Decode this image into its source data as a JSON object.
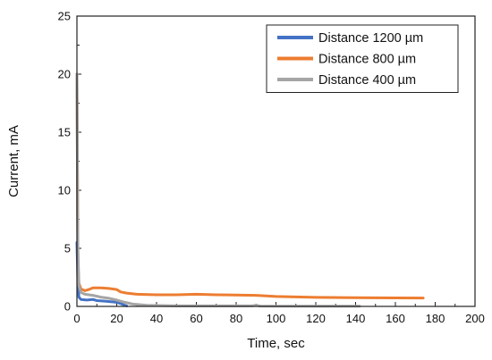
{
  "chart_data": {
    "type": "line",
    "xlabel": "Time, sec",
    "ylabel": "Current, mA",
    "xlim": [
      0,
      200
    ],
    "ylim": [
      0,
      25
    ],
    "xticks": [
      "0",
      "20",
      "40",
      "60",
      "80",
      "100",
      "120",
      "140",
      "160",
      "180",
      "200"
    ],
    "yticks": [
      "0",
      "5",
      "10",
      "15",
      "20",
      "25"
    ],
    "grid": false,
    "legend_position": "top-right",
    "series": [
      {
        "name": "Distance 1200 µm",
        "color": "#4472c4",
        "points": [
          [
            0,
            5.5
          ],
          [
            0.5,
            2.0
          ],
          [
            1,
            0.8
          ],
          [
            2,
            0.6
          ],
          [
            5,
            0.55
          ],
          [
            8,
            0.6
          ],
          [
            10,
            0.5
          ],
          [
            14,
            0.45
          ],
          [
            17,
            0.4
          ],
          [
            20,
            0.35
          ],
          [
            22,
            0.25
          ],
          [
            24,
            0.1
          ],
          [
            25,
            0.05
          ]
        ]
      },
      {
        "name": "Distance 800 µm",
        "color": "#ed7d31",
        "points": [
          [
            0,
            20.0
          ],
          [
            0.5,
            4.0
          ],
          [
            1,
            2.0
          ],
          [
            2,
            1.5
          ],
          [
            4,
            1.35
          ],
          [
            6,
            1.45
          ],
          [
            8,
            1.6
          ],
          [
            12,
            1.6
          ],
          [
            16,
            1.55
          ],
          [
            20,
            1.45
          ],
          [
            22,
            1.25
          ],
          [
            25,
            1.15
          ],
          [
            30,
            1.05
          ],
          [
            40,
            1.0
          ],
          [
            50,
            1.0
          ],
          [
            60,
            1.05
          ],
          [
            70,
            1.0
          ],
          [
            90,
            0.95
          ],
          [
            100,
            0.85
          ],
          [
            120,
            0.78
          ],
          [
            140,
            0.75
          ],
          [
            160,
            0.73
          ],
          [
            174,
            0.72
          ]
        ]
      },
      {
        "name": "Distance 400 µm",
        "color": "#a5a5a5",
        "points": [
          [
            0,
            20.0
          ],
          [
            0.5,
            5.0
          ],
          [
            1,
            1.8
          ],
          [
            2,
            1.2
          ],
          [
            4,
            1.05
          ],
          [
            8,
            0.95
          ],
          [
            12,
            0.8
          ],
          [
            16,
            0.7
          ],
          [
            20,
            0.55
          ],
          [
            24,
            0.35
          ],
          [
            28,
            0.2
          ],
          [
            35,
            0.1
          ],
          [
            50,
            0.05
          ],
          [
            88,
            0.05
          ],
          [
            90,
            0.1
          ],
          [
            92,
            0.03
          ],
          [
            120,
            0.02
          ],
          [
            142,
            0.02
          ]
        ]
      }
    ]
  }
}
